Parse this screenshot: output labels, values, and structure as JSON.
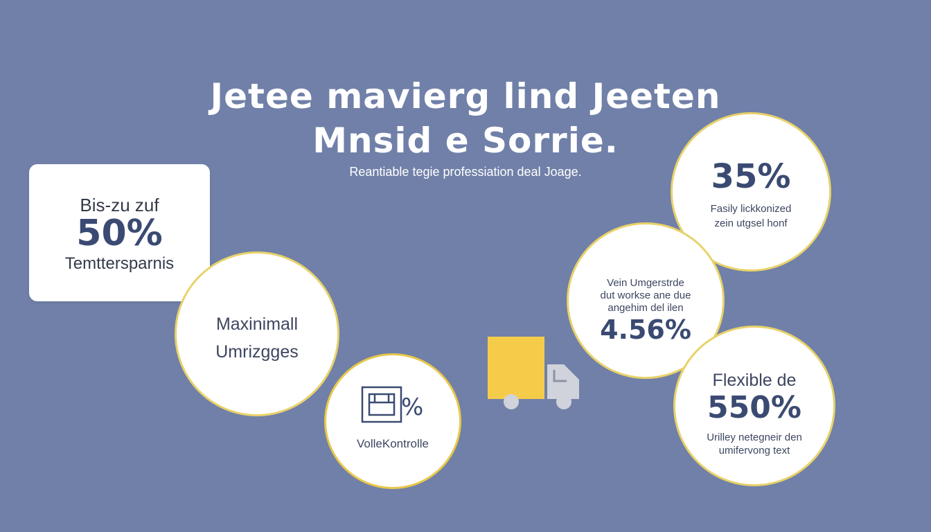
{
  "colors": {
    "background": "#7080a8",
    "card": "#ffffff",
    "accent_yellow": "#f5cc4a",
    "circle_border": "#e8d26a",
    "number_blue": "#3a4a72",
    "truck_gray": "#d0d3db"
  },
  "header": {
    "title_line1": "Jetee mavierg lind Jeeten",
    "title_line2": "Mnsid  e Sorrie.",
    "subtitle": "Reantiable tegie professiation deal Joage."
  },
  "card": {
    "line1": "Bis-zu zuf",
    "value": "50%",
    "line3": "Temttersparnis"
  },
  "circle_max": {
    "line1": "Maxinimall",
    "line2": "Umrizgges"
  },
  "circle_voll": {
    "icon": "calendar-percent-icon",
    "label": "VolleKontrolle"
  },
  "circle_35": {
    "value": "35%",
    "line1": "Fasily lickkonized",
    "line2": "zein utgsel honf"
  },
  "circle_456": {
    "line1": "Vein Umgerstrde",
    "line2": "dut workse ane due",
    "line3": "angehim del ilen",
    "value": "4.56%"
  },
  "circle_550": {
    "line1": "Flexible de",
    "value": "550%",
    "line3": "Urilley netegneir den",
    "line4": "umifervong text"
  },
  "truck": {
    "icon": "truck-icon"
  }
}
